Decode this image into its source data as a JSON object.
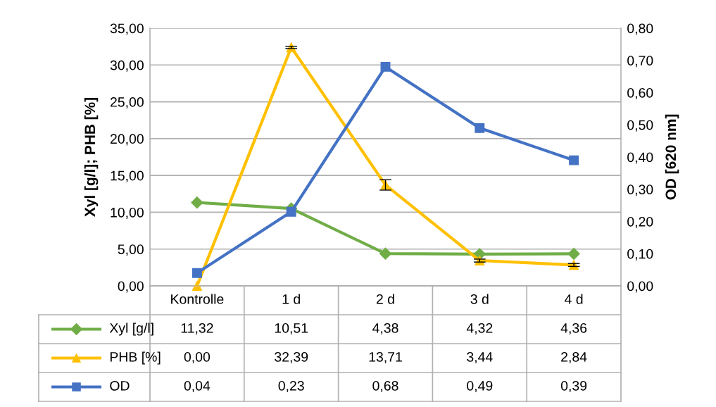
{
  "chart_data": {
    "type": "line",
    "ylabel": "Xyl [g/l]; PHB [%]",
    "y2label": "OD [620 nm]",
    "categories": [
      "Kontrolle",
      "1 d",
      "2 d",
      "3 d",
      "4 d"
    ],
    "series": [
      {
        "name": "Xyl [g/l]",
        "color": "#70ad47",
        "marker": "diamond",
        "values": [
          11.32,
          10.51,
          4.38,
          4.32,
          4.36
        ],
        "value_labels": [
          "11,32",
          "10,51",
          "4,38",
          "4,32",
          "4,36"
        ]
      },
      {
        "name": "PHB [%]",
        "color": "#ffc000",
        "marker": "triangle",
        "values": [
          0.0,
          32.39,
          13.71,
          3.44,
          2.84
        ],
        "errors": [
          null,
          0.15,
          0.7,
          0.2,
          0.2
        ],
        "value_labels": [
          "0,00",
          "32,39",
          "13,71",
          "3,44",
          "2,84"
        ]
      },
      {
        "name": "OD",
        "color": "#4472c4",
        "marker": "square",
        "axis": "y2",
        "values": [
          0.04,
          0.23,
          0.68,
          0.49,
          0.39
        ],
        "value_labels": [
          "0,04",
          "0,23",
          "0,68",
          "0,49",
          "0,39"
        ]
      }
    ],
    "ylim": [
      0,
      35
    ],
    "yticks": [
      {
        "value": 0,
        "label": "0,00"
      },
      {
        "value": 5,
        "label": "5,00"
      },
      {
        "value": 10,
        "label": "10,00"
      },
      {
        "value": 15,
        "label": "15,00"
      },
      {
        "value": 20,
        "label": "20,00"
      },
      {
        "value": 25,
        "label": "25,00"
      },
      {
        "value": 30,
        "label": "30,00"
      },
      {
        "value": 35,
        "label": "35,00"
      }
    ],
    "y2lim": [
      0,
      0.8
    ],
    "y2ticks": [
      {
        "value": 0,
        "label": "0,00"
      },
      {
        "value": 0.1,
        "label": "0,10"
      },
      {
        "value": 0.2,
        "label": "0,20"
      },
      {
        "value": 0.3,
        "label": "0,30"
      },
      {
        "value": 0.4,
        "label": "0,40"
      },
      {
        "value": 0.5,
        "label": "0,50"
      },
      {
        "value": 0.6,
        "label": "0,60"
      },
      {
        "value": 0.7,
        "label": "0,70"
      },
      {
        "value": 0.8,
        "label": "0,80"
      }
    ],
    "grid": "y",
    "legend": "bottom",
    "data_labels": true,
    "line_style": "solid"
  }
}
